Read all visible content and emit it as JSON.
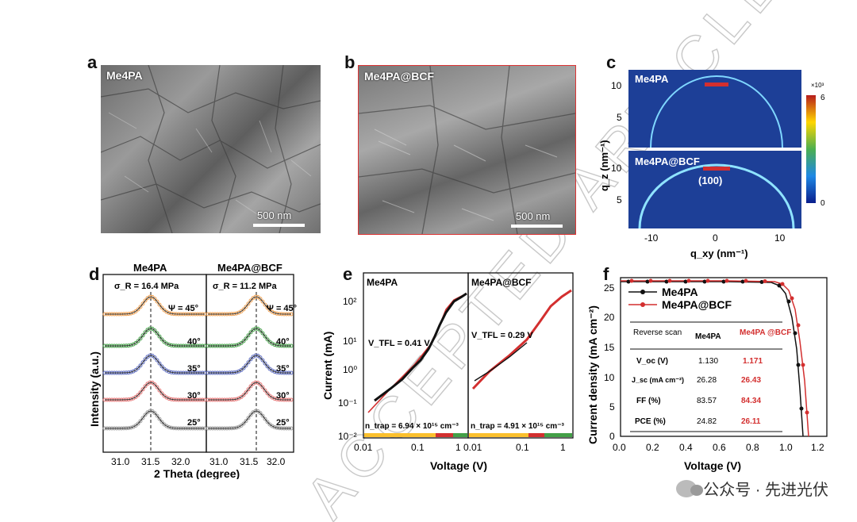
{
  "panels": {
    "a": {
      "letter": "a",
      "title": "Me4PA",
      "scale": "500 nm"
    },
    "b": {
      "letter": "b",
      "title": "Me4PA@BCF",
      "scale": "500 nm"
    },
    "c": {
      "letter": "c",
      "top_title": "Me4PA",
      "bottom_title": "Me4PA@BCF",
      "peak_label": "(100)",
      "colorbar_unit": "×10³",
      "colorbar_max": "6",
      "colorbar_min": "0",
      "ylabel": "q_z (nm⁻¹)",
      "xlabel": "q_xy (nm⁻¹)",
      "yticks": [
        "10",
        "5"
      ],
      "xticks": [
        "-10",
        "0",
        "10"
      ]
    },
    "d": {
      "letter": "d",
      "left_title": "Me4PA",
      "right_title": "Me4PA@BCF",
      "left_stress": "σ_R = 16.4 MPa",
      "right_stress": "σ_R = 11.2 MPa",
      "ylabel": "Intensity (a.u.)",
      "xlabel": "2 Theta (degree)",
      "xticks": [
        "31.0",
        "31.5",
        "32.0"
      ],
      "psi_labels": [
        "Ψ = 45°",
        "40°",
        "35°",
        "30°",
        "25°"
      ]
    },
    "e": {
      "letter": "e",
      "left_title": "Me4PA",
      "right_title": "Me4PA@BCF",
      "left_vtfl": "V_TFL = 0.41 V",
      "right_vtfl": "V_TFL = 0.29 V",
      "left_ntrap": "n_trap = 6.94 × 10¹⁵ cm⁻³",
      "right_ntrap": "n_trap = 4.91 × 10¹⁵ cm⁻³",
      "ylabel": "Current (mA)",
      "xlabel": "Voltage (V)",
      "yticks": [
        "10²",
        "10¹",
        "10⁰",
        "10⁻¹",
        "10⁻²"
      ],
      "xticks_left": [
        "0.01",
        "0.1",
        "1"
      ],
      "xticks_right": [
        "0.01",
        "0.1",
        "1"
      ]
    },
    "f": {
      "letter": "f",
      "ylabel": "Current density (mA cm⁻²)",
      "xlabel": "Voltage (V)",
      "legend": [
        "Me4PA",
        "Me4PA@BCF"
      ],
      "yticks": [
        "0",
        "5",
        "10",
        "15",
        "20",
        "25"
      ],
      "xticks": [
        "0.0",
        "0.2",
        "0.4",
        "0.6",
        "0.8",
        "1.0",
        "1.2"
      ],
      "table": {
        "header": [
          "Reverse scan",
          "Me4PA",
          "Me4PA @BCF"
        ],
        "rows": [
          [
            "V_oc (V)",
            "1.130",
            "1.171"
          ],
          [
            "J_sc (mA cm⁻²)",
            "26.28",
            "26.43"
          ],
          [
            "FF (%)",
            "83.57",
            "84.34"
          ],
          [
            "PCE (%)",
            "24.82",
            "26.11"
          ]
        ]
      }
    }
  },
  "watermark": {
    "text": "公众号 · 先进光伏",
    "icon": "wechat-icon"
  },
  "overlay_text": "ACCEPTED ARTICLE PREVIEW",
  "colors": {
    "accent_red": "#d32f2f",
    "black": "#111111"
  }
}
